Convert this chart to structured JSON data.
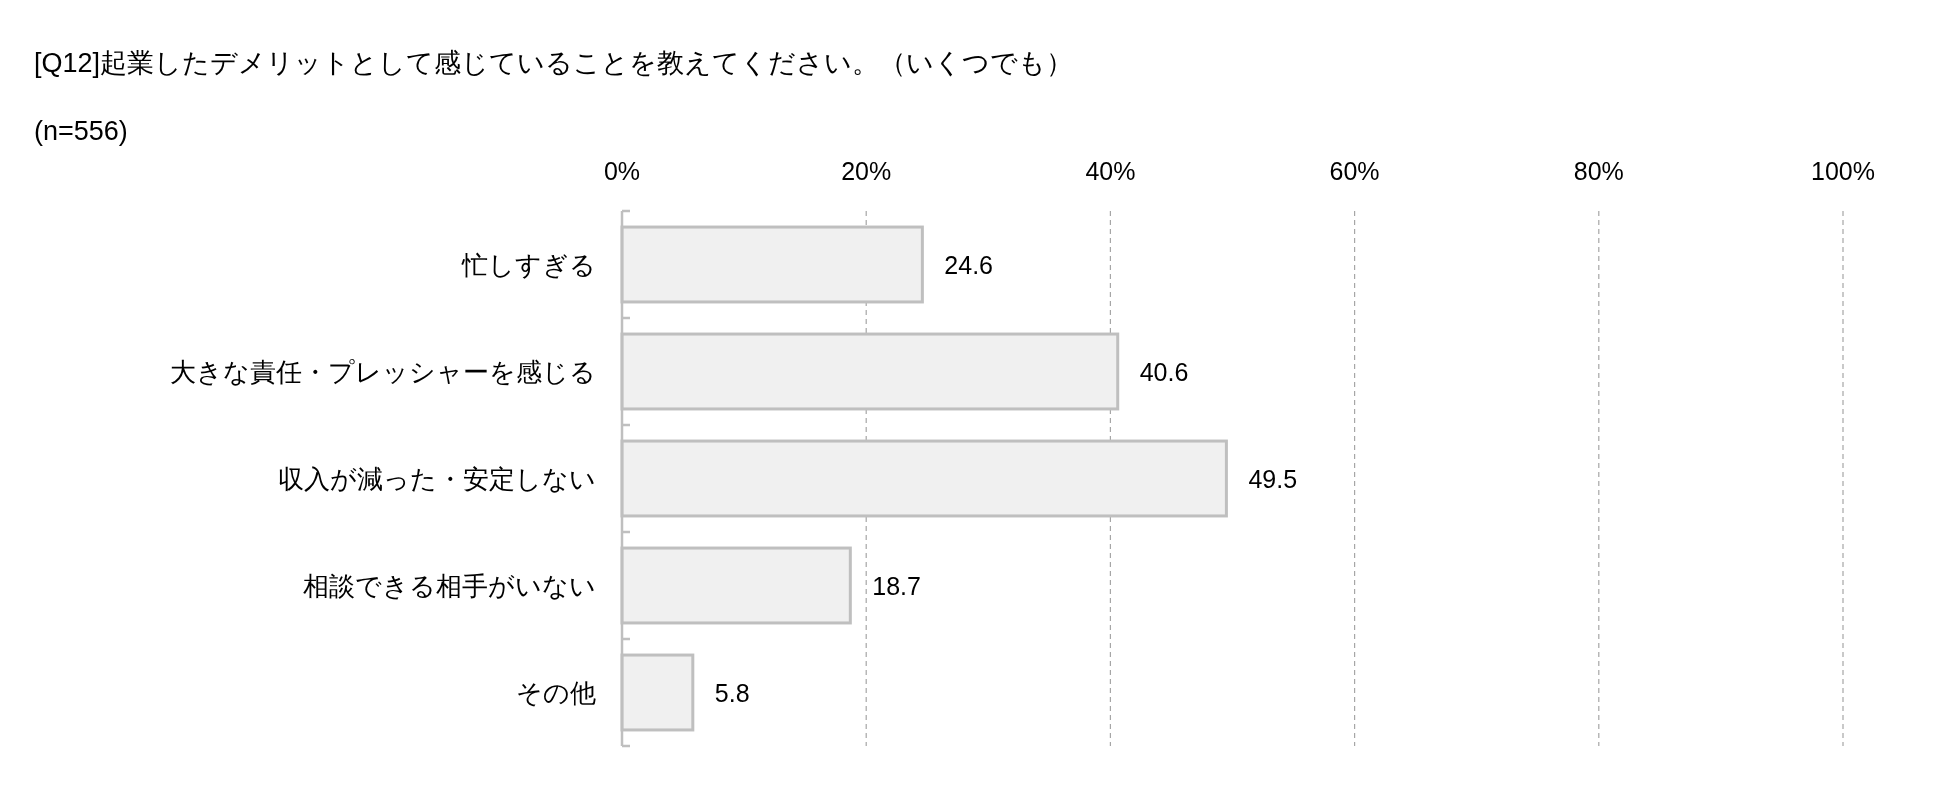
{
  "chart_data": {
    "type": "bar",
    "orientation": "horizontal",
    "title": "[Q12]起業したデメリットとして感じていることを教えてください。（いくつでも）",
    "subtitle": "(n=556)",
    "categories": [
      "忙しすぎる",
      "大きな責任・プレッシャーを感じる",
      "収入が減った・安定しない",
      "相談できる相手がいない",
      "その他"
    ],
    "values": [
      24.6,
      40.6,
      49.5,
      18.7,
      5.8
    ],
    "color": "#f0f0f0",
    "xlim": [
      0,
      100
    ],
    "xticks": [
      {
        "value": 0,
        "label": "0%"
      },
      {
        "value": 20,
        "label": "20%"
      },
      {
        "value": 40,
        "label": "40%"
      },
      {
        "value": 60,
        "label": "60%"
      },
      {
        "value": 80,
        "label": "80%"
      },
      {
        "value": 100,
        "label": "100%"
      }
    ],
    "grid": "x",
    "data_labels": true
  }
}
